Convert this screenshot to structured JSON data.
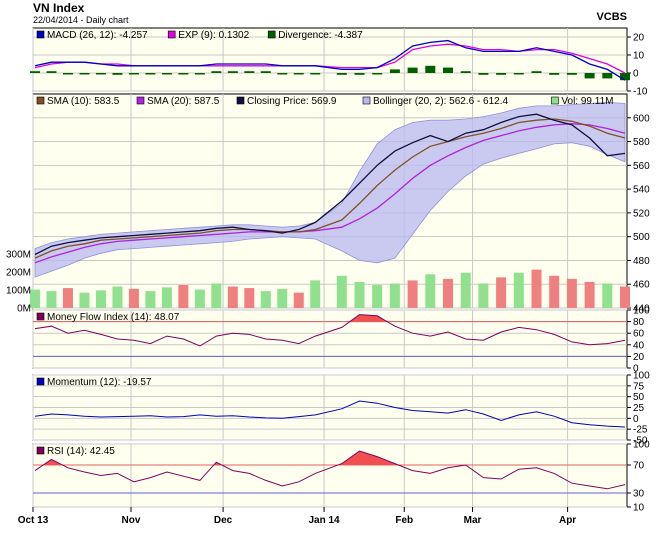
{
  "header": {
    "title": "VN Index",
    "subtitle": "22/04/2014 - Daily chart",
    "brand": "VCBS"
  },
  "colors": {
    "panel_bg": "#fffff0",
    "grid": "#c8c8c8",
    "macd_line": "#0000c0",
    "macd_signal": "#e000e0",
    "divergence": "#006000",
    "sma10": "#80502a",
    "sma20": "#b020e0",
    "price": "#101040",
    "bollinger_fill": "#b8b8f0",
    "vol_up": "#90e090",
    "vol_down": "#f08080",
    "mfi_line": "#800060",
    "momentum_line": "#0000c0",
    "rsi_line": "#800060",
    "overbought_fill": "#f05050",
    "upper_ref": "#e06060",
    "lower_ref": "#6060e0"
  },
  "x_axis": {
    "labels": [
      "Oct 13",
      "Nov",
      "Dec",
      "Jan 14",
      "Feb",
      "Mar",
      "Apr"
    ]
  },
  "chart_data": [
    {
      "type": "line",
      "panel": "macd",
      "legend": [
        {
          "label": "MACD (26, 12): -4.257",
          "color": "#0000c0"
        },
        {
          "label": "EXP (9): 0.1302",
          "color": "#e000e0"
        },
        {
          "label": "Divergence: -4.387",
          "color": "#006000"
        }
      ],
      "ylim": [
        -10,
        25
      ],
      "yticks": [
        "20",
        "10",
        "0",
        "-10"
      ],
      "series": [
        {
          "name": "MACD",
          "values": [
            4,
            6,
            6,
            6,
            5,
            4,
            4,
            4,
            4,
            4,
            4,
            5,
            5,
            5,
            5,
            4,
            4,
            4,
            2,
            2,
            3,
            8,
            15,
            17,
            18,
            14,
            12,
            12,
            12,
            14,
            12,
            10,
            5,
            2,
            -4
          ]
        },
        {
          "name": "EXP",
          "values": [
            3,
            5,
            6,
            6,
            5,
            5,
            4,
            4,
            4,
            4,
            4,
            4,
            4,
            4,
            4,
            4,
            4,
            4,
            3,
            3,
            3,
            6,
            13,
            15,
            16,
            15,
            13,
            13,
            12,
            13,
            13,
            11,
            8,
            5,
            0
          ]
        },
        {
          "name": "Divergence",
          "values": [
            1,
            1,
            0,
            0,
            0,
            -1,
            0,
            0,
            0,
            0,
            0,
            1,
            1,
            1,
            1,
            0,
            0,
            0,
            -1,
            -1,
            0,
            2,
            3,
            4,
            3,
            1,
            -1,
            -1,
            0,
            1,
            -1,
            -1,
            -3,
            -3,
            -4
          ]
        }
      ]
    },
    {
      "type": "line",
      "panel": "price",
      "legend": [
        {
          "label": "SMA (10): 583.5",
          "color": "#80502a"
        },
        {
          "label": "SMA (20): 587.5",
          "color": "#b020e0"
        },
        {
          "label": "Closing Price: 569.9",
          "color": "#101040"
        },
        {
          "label": "Bollinger (20, 2): 562.6 - 612.4",
          "color": "#b8b8f0"
        },
        {
          "label": "Vol: 99.11M",
          "color": "#90e090"
        }
      ],
      "ylim": [
        440,
        620
      ],
      "yticks": [
        "600",
        "580",
        "560",
        "540",
        "520",
        "500",
        "480",
        "460",
        "440"
      ],
      "vol_ticks": [
        "300M",
        "200M",
        "100M",
        "0M"
      ],
      "vol_max": 600,
      "series": [
        {
          "name": "Closing Price",
          "values": [
            485,
            492,
            495,
            497,
            499,
            500,
            501,
            502,
            503,
            504,
            505,
            507,
            508,
            506,
            505,
            503,
            506,
            512,
            530,
            545,
            560,
            572,
            579,
            585,
            580,
            587,
            590,
            596,
            601,
            603,
            598,
            594,
            583,
            568,
            570
          ]
        },
        {
          "name": "SMA (10)",
          "values": [
            482,
            488,
            492,
            494,
            497,
            498,
            499,
            500,
            501,
            502,
            503,
            505,
            506,
            506,
            505,
            504,
            504,
            506,
            514,
            528,
            543,
            556,
            567,
            576,
            580,
            584,
            587,
            591,
            596,
            598,
            599,
            597,
            593,
            587,
            583
          ]
        },
        {
          "name": "SMA (20)",
          "values": [
            478,
            483,
            487,
            491,
            494,
            496,
            497,
            498,
            499,
            500,
            501,
            502,
            503,
            504,
            504,
            504,
            504,
            505,
            508,
            515,
            524,
            536,
            549,
            560,
            568,
            575,
            581,
            585,
            589,
            592,
            594,
            595,
            594,
            591,
            587
          ]
        },
        {
          "name": "Bollinger Upper",
          "values": [
            490,
            495,
            498,
            500,
            502,
            503,
            504,
            505,
            506,
            507,
            508,
            509,
            510,
            510,
            509,
            508,
            509,
            512,
            528,
            555,
            578,
            590,
            596,
            598,
            598,
            599,
            601,
            604,
            608,
            610,
            610,
            611,
            612,
            613,
            612
          ]
        },
        {
          "name": "Bollinger Lower",
          "values": [
            466,
            471,
            476,
            482,
            486,
            489,
            490,
            491,
            492,
            493,
            494,
            495,
            496,
            498,
            499,
            500,
            499,
            498,
            488,
            480,
            478,
            482,
            502,
            522,
            538,
            551,
            561,
            566,
            570,
            574,
            578,
            579,
            576,
            569,
            563
          ]
        },
        {
          "name": "Volume",
          "values": [
            120,
            110,
            130,
            100,
            115,
            140,
            125,
            110,
            135,
            150,
            120,
            160,
            140,
            130,
            110,
            125,
            100,
            180,
            210,
            170,
            150,
            160,
            180,
            220,
            190,
            230,
            160,
            200,
            230,
            250,
            210,
            190,
            170,
            160,
            140
          ]
        },
        {
          "name": "Volume direction",
          "values": [
            1,
            1,
            0,
            1,
            1,
            1,
            0,
            1,
            1,
            0,
            1,
            1,
            0,
            0,
            1,
            1,
            0,
            1,
            1,
            1,
            1,
            1,
            0,
            1,
            0,
            1,
            1,
            0,
            1,
            0,
            0,
            0,
            0,
            1,
            0
          ]
        }
      ]
    },
    {
      "type": "line",
      "panel": "mfi",
      "legend": [
        {
          "label": "Money Flow Index (14): 48.07",
          "color": "#800060"
        }
      ],
      "ylim": [
        0,
        100
      ],
      "yticks": [
        "100",
        "80",
        "60",
        "40",
        "20",
        "0"
      ],
      "ref_high": 80,
      "ref_low": 20,
      "series": [
        {
          "name": "MFI",
          "values": [
            68,
            72,
            60,
            65,
            58,
            50,
            48,
            42,
            55,
            50,
            38,
            55,
            60,
            58,
            50,
            48,
            42,
            55,
            70,
            92,
            90,
            72,
            60,
            55,
            62,
            50,
            48,
            62,
            70,
            66,
            58,
            45,
            40,
            42,
            48
          ]
        }
      ]
    },
    {
      "type": "line",
      "panel": "momentum",
      "legend": [
        {
          "label": "Momentum (12): -19.57",
          "color": "#0000c0"
        }
      ],
      "ylim": [
        -50,
        100
      ],
      "yticks": [
        "100",
        "75",
        "50",
        "25",
        "0",
        "-25",
        "-50"
      ],
      "series": [
        {
          "name": "Momentum",
          "values": [
            5,
            10,
            8,
            5,
            3,
            4,
            5,
            6,
            3,
            4,
            8,
            5,
            6,
            3,
            1,
            0,
            4,
            8,
            22,
            40,
            35,
            25,
            18,
            15,
            12,
            20,
            10,
            -5,
            8,
            15,
            5,
            -10,
            -15,
            -18,
            -20
          ]
        }
      ]
    },
    {
      "type": "line",
      "panel": "rsi",
      "legend": [
        {
          "label": "RSI (14): 42.45",
          "color": "#800060"
        }
      ],
      "ylim": [
        10,
        100
      ],
      "yticks": [
        "100",
        "70",
        "30",
        "10"
      ],
      "ref_high": 70,
      "ref_low": 30,
      "series": [
        {
          "name": "RSI",
          "values": [
            62,
            78,
            66,
            60,
            55,
            58,
            46,
            52,
            60,
            54,
            48,
            74,
            62,
            58,
            48,
            40,
            46,
            58,
            72,
            90,
            82,
            72,
            62,
            58,
            66,
            70,
            52,
            50,
            64,
            66,
            58,
            44,
            40,
            36,
            42
          ]
        }
      ]
    }
  ]
}
